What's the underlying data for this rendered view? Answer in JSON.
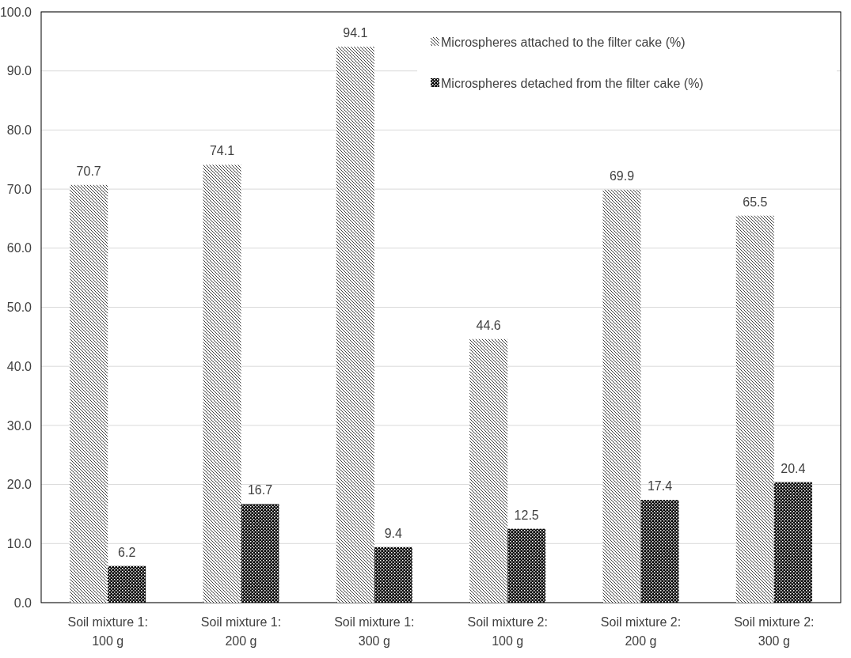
{
  "chart_data": {
    "type": "bar",
    "categories": [
      "Soil mixture 1: 100 g",
      "Soil mixture 1: 200 g",
      "Soil mixture 1: 300 g",
      "Soil mixture 2: 100 g",
      "Soil mixture 2: 200 g",
      "Soil mixture 2: 300 g"
    ],
    "series": [
      {
        "name": "Microspheres attached to the filter cake (%)",
        "color": "#404040",
        "values": [
          70.7,
          74.1,
          94.1,
          44.6,
          69.9,
          65.5
        ]
      },
      {
        "name": "Microspheres detached from  the filter cake (%)",
        "color": "#000000",
        "values": [
          6.2,
          16.7,
          9.4,
          12.5,
          17.4,
          20.4
        ]
      }
    ],
    "ylim": [
      0,
      100
    ],
    "yticks": [
      {
        "value": 0,
        "label": "0.0"
      },
      {
        "value": 10,
        "label": "10.0"
      },
      {
        "value": 20,
        "label": "20.0"
      },
      {
        "value": 30,
        "label": "30.0"
      },
      {
        "value": 40,
        "label": "40.0"
      },
      {
        "value": 50,
        "label": "50.0"
      },
      {
        "value": 60,
        "label": "60.0"
      },
      {
        "value": 70,
        "label": "70.0"
      },
      {
        "value": 80,
        "label": "80.0"
      },
      {
        "value": 90,
        "label": "90.0"
      },
      {
        "value": 100,
        "label": "100.0"
      }
    ],
    "grid": "y",
    "legend": "top right",
    "data_labels": true
  }
}
